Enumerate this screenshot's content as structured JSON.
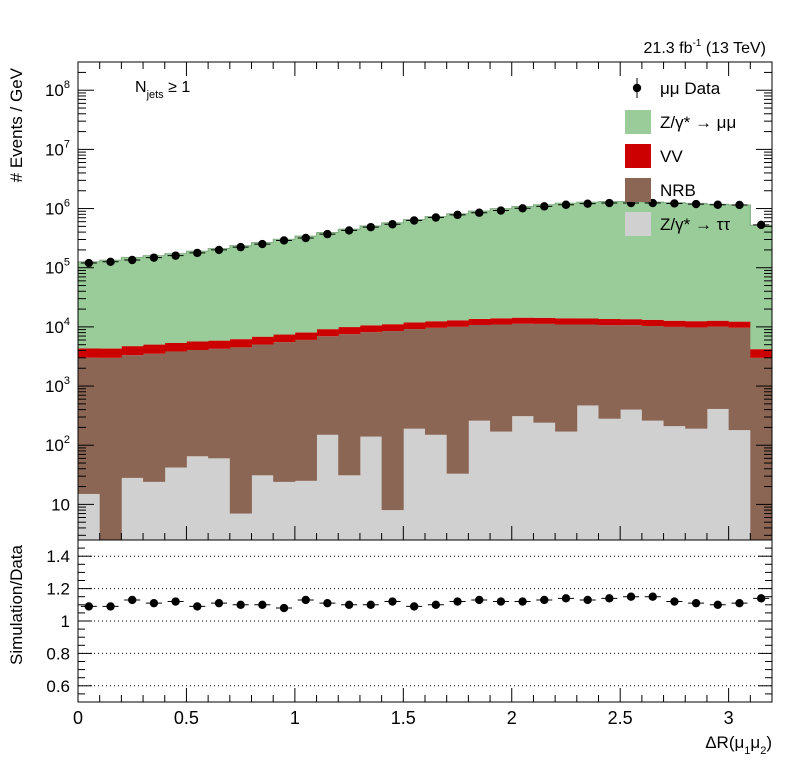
{
  "chart_data": [
    {
      "type": "area",
      "scale": "log",
      "luminosity_label": "21.3 fb",
      "luminosity_sup": "-1",
      "luminosity_suffix": " (13 TeV)",
      "category_label": "N",
      "category_sub": "jets",
      "category_suffix": " ≥ 1",
      "ylabel": "# Events / GeV",
      "ylim": [
        2.5,
        300000000
      ],
      "y_ticks": [
        {
          "value": 10,
          "label": "10"
        },
        {
          "value": 100,
          "base": "10",
          "exp": "2"
        },
        {
          "value": 1000,
          "base": "10",
          "exp": "3"
        },
        {
          "value": 10000,
          "base": "10",
          "exp": "4"
        },
        {
          "value": 100000,
          "base": "10",
          "exp": "5"
        },
        {
          "value": 1000000,
          "base": "10",
          "exp": "6"
        },
        {
          "value": 10000000,
          "base": "10",
          "exp": "7"
        },
        {
          "value": 100000000,
          "base": "10",
          "exp": "8"
        }
      ],
      "bin_width": 0.1,
      "x_centers": [
        0.05,
        0.15,
        0.25,
        0.35,
        0.45,
        0.55,
        0.65,
        0.75,
        0.85,
        0.95,
        1.05,
        1.15,
        1.25,
        1.35,
        1.45,
        1.55,
        1.65,
        1.75,
        1.85,
        1.95,
        2.05,
        2.15,
        2.25,
        2.35,
        2.45,
        2.55,
        2.65,
        2.75,
        2.85,
        2.95,
        3.05,
        3.15
      ],
      "legend_position": "top-right",
      "legend": [
        {
          "key": "data",
          "label": "μμ Data",
          "style": "marker"
        },
        {
          "key": "zmm",
          "label": "Z/γ* → μμ",
          "style": "box"
        },
        {
          "key": "vv",
          "label": "VV",
          "style": "box"
        },
        {
          "key": "nrb",
          "label": "NRB",
          "style": "box"
        },
        {
          "key": "ztt",
          "label": "Z/γ* → ττ",
          "style": "box"
        }
      ],
      "colors": {
        "zmm": "#99cc99",
        "vv": "#cc0000",
        "nrb": "#8c6655",
        "ztt": "#d0d0d0",
        "data": "#000000"
      },
      "series": [
        {
          "key": "ztt",
          "name": "Z/γ* → ττ",
          "values": [
            15,
            2,
            28,
            24,
            42,
            65,
            60,
            7,
            31,
            24,
            25,
            150,
            31,
            140,
            8,
            190,
            150,
            33,
            260,
            170,
            310,
            240,
            170,
            470,
            280,
            400,
            260,
            210,
            190,
            410,
            180,
            0
          ]
        },
        {
          "key": "nrb",
          "name": "NRB",
          "values": [
            3000,
            3000,
            3300,
            3500,
            3800,
            4000,
            4200,
            4500,
            5000,
            5500,
            6000,
            6800,
            7500,
            8000,
            8500,
            9000,
            9500,
            10000,
            10500,
            10800,
            11000,
            11000,
            10800,
            10500,
            10400,
            10300,
            10100,
            9800,
            9600,
            9700,
            9500,
            3000
          ]
        },
        {
          "key": "vv",
          "name": "VV",
          "values": [
            1300,
            1300,
            1400,
            1500,
            1500,
            1600,
            1600,
            1700,
            1800,
            1900,
            2000,
            2200,
            2400,
            2500,
            2600,
            2700,
            2800,
            2900,
            2900,
            3000,
            3000,
            3000,
            3000,
            2900,
            2900,
            2800,
            2800,
            2700,
            2700,
            2600,
            2600,
            1200
          ]
        },
        {
          "key": "zmm",
          "name": "Z/γ* → μμ",
          "values": [
            122000,
            130000,
            145000,
            155000,
            168000,
            185000,
            205000,
            230000,
            260000,
            295000,
            335000,
            385000,
            440000,
            500000,
            565000,
            640000,
            720000,
            805000,
            895000,
            985000,
            1070000,
            1150000,
            1220000,
            1270000,
            1300000,
            1300000,
            1280000,
            1250000,
            1210000,
            1170000,
            1140000,
            520000
          ]
        },
        {
          "key": "data",
          "name": "μμ Data",
          "values": [
            120000,
            126000,
            135000,
            148000,
            160000,
            178000,
            200000,
            223000,
            251000,
            289000,
            318000,
            370000,
            427000,
            485000,
            543000,
            628000,
            706000,
            783000,
            850000,
            925000,
            1010000,
            1090000,
            1160000,
            1210000,
            1240000,
            1240000,
            1240000,
            1220000,
            1190000,
            1160000,
            1150000,
            530000
          ]
        }
      ]
    },
    {
      "type": "scatter",
      "ylabel": "Simulation/Data",
      "xlabel_prefix": "ΔR(μ",
      "xlabel_sub1": "1",
      "xlabel_mid": "μ",
      "xlabel_sub2": "2",
      "xlabel_suffix": ")",
      "xlim": [
        0,
        3.2
      ],
      "ylim": [
        0.5,
        1.5
      ],
      "y_ticks": [
        "0.6",
        "0.8",
        "1",
        "1.2",
        "1.4"
      ],
      "x_ticks": [
        "0",
        "0.5",
        "1",
        "1.5",
        "2",
        "2.5",
        "3"
      ],
      "gridlines": [
        0.6,
        0.8,
        1.0,
        1.2,
        1.4
      ],
      "x": [
        0.05,
        0.15,
        0.25,
        0.35,
        0.45,
        0.55,
        0.65,
        0.75,
        0.85,
        0.95,
        1.05,
        1.15,
        1.25,
        1.35,
        1.45,
        1.55,
        1.65,
        1.75,
        1.85,
        1.95,
        2.05,
        2.15,
        2.25,
        2.35,
        2.45,
        2.55,
        2.65,
        2.75,
        2.85,
        2.95,
        3.05,
        3.15
      ],
      "values": [
        1.09,
        1.09,
        1.13,
        1.11,
        1.12,
        1.09,
        1.11,
        1.1,
        1.1,
        1.08,
        1.13,
        1.11,
        1.1,
        1.1,
        1.12,
        1.09,
        1.1,
        1.12,
        1.13,
        1.12,
        1.12,
        1.13,
        1.14,
        1.13,
        1.14,
        1.15,
        1.15,
        1.12,
        1.11,
        1.1,
        1.11,
        1.14
      ]
    }
  ]
}
